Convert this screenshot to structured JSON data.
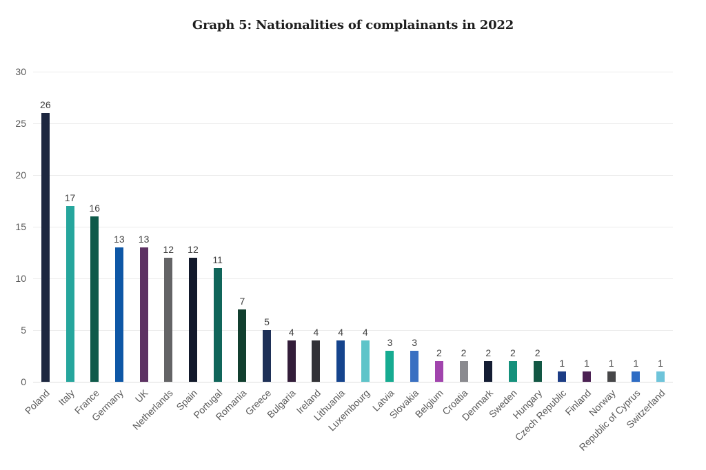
{
  "title": "Graph 5: Nationalities of complainants in 2022",
  "chart_data": {
    "type": "bar",
    "title": "Graph 5: Nationalities of complainants in 2022",
    "xlabel": "",
    "ylabel": "",
    "ylim": [
      0,
      30
    ],
    "yticks": [
      0,
      5,
      10,
      15,
      20,
      25,
      30
    ],
    "grid": "horizontal",
    "legend": "none",
    "value_labels": true,
    "categories": [
      "Poland",
      "Italy",
      "France",
      "Germany",
      "UK",
      "Netherlands",
      "Spain",
      "Portugal",
      "Romania",
      "Greece",
      "Bulgaria",
      "Ireland",
      "Lithuania",
      "Luxembourg",
      "Latvia",
      "Slovakia",
      "Belgium",
      "Croatia",
      "Denmark",
      "Sweden",
      "Hungary",
      "Czech Republic",
      "Finland",
      "Norway",
      "Republic of Cyprus",
      "Switzerland"
    ],
    "values": [
      26,
      17,
      16,
      13,
      13,
      12,
      12,
      11,
      7,
      5,
      4,
      4,
      4,
      4,
      3,
      3,
      2,
      2,
      2,
      2,
      2,
      1,
      1,
      1,
      1,
      1
    ],
    "bar_colors": [
      "#1d2740",
      "#26a69d",
      "#0e5a4a",
      "#0e57a6",
      "#5d3263",
      "#646466",
      "#12192b",
      "#10655a",
      "#113f2f",
      "#1e3057",
      "#331d3a",
      "#323237",
      "#15448d",
      "#5ec4c9",
      "#16ab91",
      "#3a70c2",
      "#a144ad",
      "#8a8a8f",
      "#141d33",
      "#15917c",
      "#125744",
      "#1d3d85",
      "#4b2153",
      "#474749",
      "#2e6cc4",
      "#6ec4da"
    ]
  },
  "colors": {
    "background": "#ffffff",
    "title_text": "#1e1e1e",
    "value_label": "#3f3f3f",
    "tick_label": "#595959",
    "gridline": "#ebebeb",
    "axis_baseline": "#dcdcdc"
  }
}
